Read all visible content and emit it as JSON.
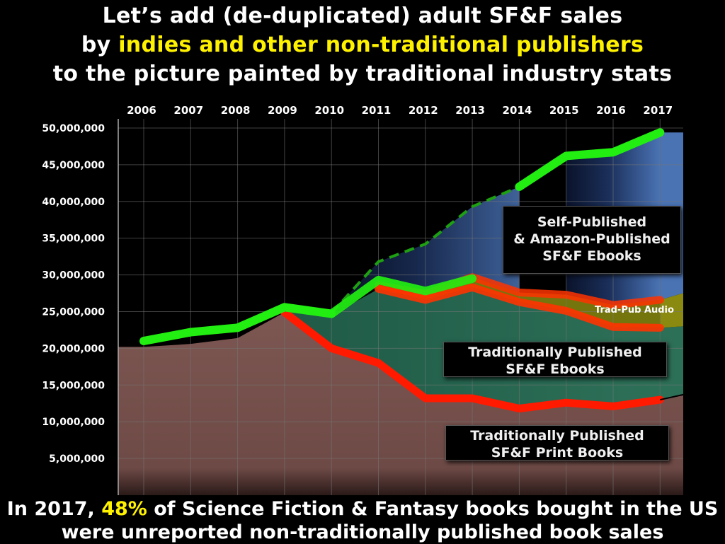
{
  "title": {
    "line1": "Let’s add (de-duplicated) adult SF&F sales",
    "line2_pre": "by ",
    "line2_highlight": "indies and other non-traditional publishers",
    "line3": "to the picture painted by traditional industry stats"
  },
  "footer": {
    "line1_pre": "In 2017, ",
    "line1_highlight": "48%",
    "line1_post": " of Science Fiction & Fantasy books bought in the US",
    "line2": "were unreported non-traditionally published book sales"
  },
  "labels": {
    "self_pub": [
      "Self-Published",
      "& Amazon-Published",
      "SF&F Ebooks"
    ],
    "trad_ebook": [
      "Traditionally Published",
      "SF&F Ebooks"
    ],
    "trad_print": [
      "Traditionally Published",
      "SF&F Print Books"
    ],
    "trad_audio": "Trad-Pub Audio"
  },
  "colors": {
    "highlight": "#fff200",
    "total_line": "#22ee11",
    "trad_lines": "#ff1a00",
    "print_area": "#7a5550",
    "ebook_area": "#2a6a52",
    "audio_area": "#8a8a10",
    "self_area": "#3a5f98"
  },
  "chart_data": {
    "type": "area",
    "categories": [
      "2006",
      "2007",
      "2008",
      "2009",
      "2010",
      "2011",
      "2012",
      "2013",
      "2014",
      "2015",
      "2016",
      "2017"
    ],
    "ylim": [
      0,
      50000000
    ],
    "yticks": [
      "50,000,000",
      "45,000,000",
      "40,000,000",
      "35,000,000",
      "30,000,000",
      "25,000,000",
      "20,000,000",
      "15,000,000",
      "10,000,000",
      "5,000,000"
    ],
    "grid": true,
    "series": [
      {
        "name": "Traditionally Published SF&F Print Books",
        "values": [
          20200000,
          20600000,
          21400000,
          24900000,
          20000000,
          18000000,
          13200000,
          13200000,
          11800000,
          12600000,
          12100000,
          13000000
        ]
      },
      {
        "name": "Traditionally Published SF&F Ebooks",
        "values": [
          null,
          null,
          null,
          25000000,
          24500000,
          28100000,
          26600000,
          28300000,
          26300000,
          25100000,
          22900000,
          22800000
        ]
      },
      {
        "name": "Trad-Pub Audio",
        "values": [
          null,
          null,
          null,
          null,
          null,
          28600000,
          27400000,
          29700000,
          27600000,
          27300000,
          25900000,
          26600000
        ]
      },
      {
        "name": "Self-Published & Amazon-Published SF&F Ebooks",
        "values": [
          21000000,
          22200000,
          22800000,
          25600000,
          24700000,
          29300000,
          27800000,
          29500000,
          42000000,
          46200000,
          46700000,
          49400000
        ]
      },
      {
        "name": "",
        "style": "dashed",
        "values": [
          null,
          null,
          null,
          null,
          24800000,
          31800000,
          34200000,
          39300000,
          42000000,
          null,
          null,
          null
        ]
      }
    ]
  }
}
